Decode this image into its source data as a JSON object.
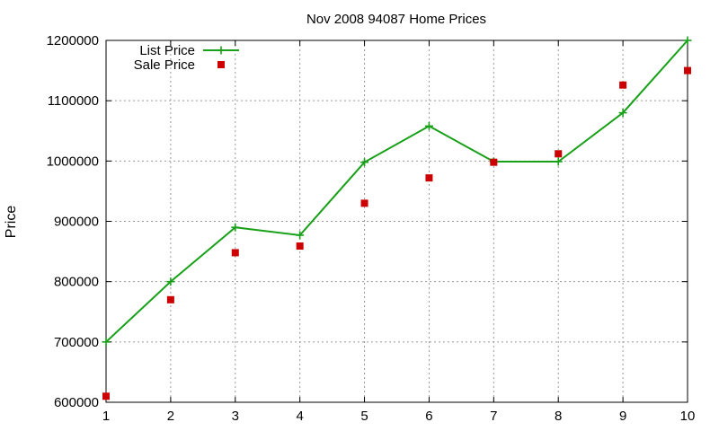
{
  "chart_data": {
    "type": "line",
    "title": "Nov 2008 94087 Home Prices",
    "xlabel": "",
    "ylabel": "Price",
    "xlim": [
      1,
      10
    ],
    "ylim": [
      600000,
      1200000
    ],
    "x_ticks": [
      "1",
      "2",
      "3",
      "4",
      "5",
      "6",
      "7",
      "8",
      "9",
      "10"
    ],
    "y_ticks": [
      "600000",
      "700000",
      "800000",
      "900000",
      "1000000",
      "1100000",
      "1200000"
    ],
    "grid": true,
    "legend_position": "top-left",
    "x": [
      1,
      2,
      3,
      4,
      5,
      6,
      7,
      8,
      9,
      10
    ],
    "series": [
      {
        "name": "List Price",
        "style": "line-with-plus-markers",
        "color": "#19a019",
        "values": [
          700000,
          800000,
          890000,
          877000,
          998000,
          1058000,
          999000,
          999000,
          1080000,
          1200000
        ]
      },
      {
        "name": "Sale Price",
        "style": "square-points",
        "color": "#cc0000",
        "values": [
          610000,
          770000,
          848000,
          859000,
          930000,
          972000,
          998000,
          1012000,
          1126000,
          1150000
        ]
      }
    ]
  }
}
